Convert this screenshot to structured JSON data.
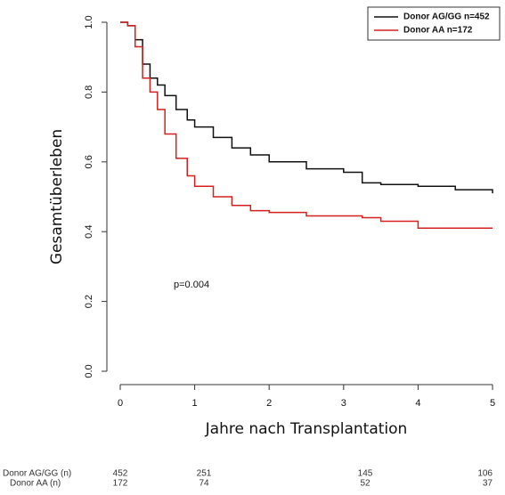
{
  "chart_data": {
    "type": "line",
    "step": true,
    "x_label": "Jahre nach Transplantation",
    "y_label": "Gesamtüberleben",
    "annotation": "p=0.004",
    "x": [
      0,
      0.1,
      0.2,
      0.3,
      0.4,
      0.5,
      0.6,
      0.75,
      0.9,
      1.0,
      1.25,
      1.5,
      1.75,
      2.0,
      2.5,
      3.0,
      3.25,
      3.5,
      4.0,
      4.5,
      5.0
    ],
    "series": [
      {
        "name": "Donor AG/GG n=452",
        "color": "#111111",
        "values": [
          1.0,
          0.99,
          0.95,
          0.88,
          0.84,
          0.82,
          0.79,
          0.75,
          0.72,
          0.7,
          0.67,
          0.64,
          0.62,
          0.6,
          0.58,
          0.57,
          0.54,
          0.535,
          0.53,
          0.52,
          0.51
        ]
      },
      {
        "name": "Donor AA n=172",
        "color": "#d42020",
        "values": [
          1.0,
          0.99,
          0.93,
          0.84,
          0.8,
          0.75,
          0.68,
          0.61,
          0.56,
          0.53,
          0.5,
          0.475,
          0.46,
          0.455,
          0.445,
          0.445,
          0.44,
          0.43,
          0.41,
          0.41,
          0.41
        ]
      }
    ],
    "xlim": [
      0,
      5
    ],
    "xticks": [
      0,
      1,
      2,
      3,
      4,
      5
    ],
    "ylim": [
      0,
      1
    ],
    "yticks": [
      {
        "value": 0,
        "label": "0.0"
      },
      0.2,
      0.4,
      0.6,
      0.8,
      {
        "value": 1,
        "label": "1.0"
      }
    ],
    "legend": "upper right",
    "risk_table": {
      "rows": [
        {
          "label": "Donor AG/GG (n)",
          "counts": [
            452,
            251,
            145,
            106
          ]
        },
        {
          "label": "Donor AA (n)",
          "counts": [
            172,
            74,
            52,
            37
          ]
        }
      ]
    }
  }
}
